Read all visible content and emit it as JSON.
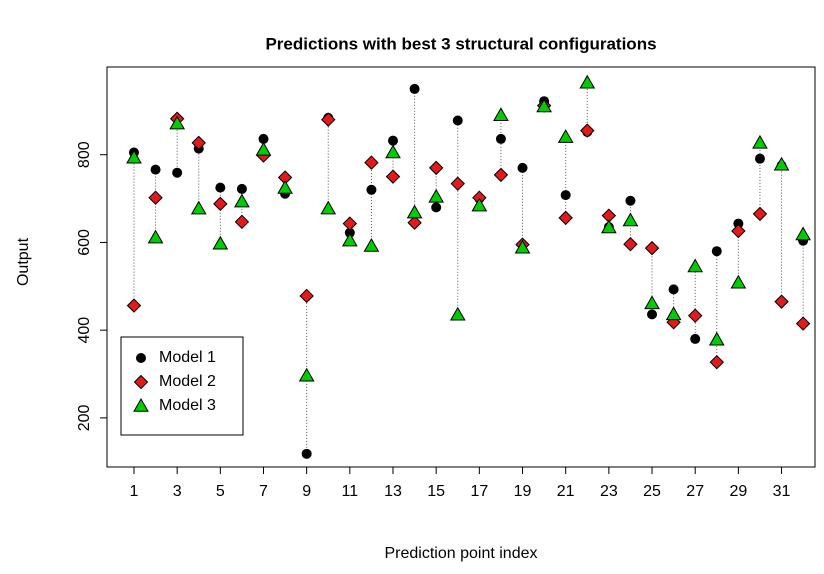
{
  "chart_data": {
    "type": "scatter",
    "title": "Predictions with best 3 structural configurations",
    "x_label": "Prediction point index",
    "y_label": "Output",
    "x": [
      1,
      2,
      3,
      4,
      5,
      6,
      7,
      8,
      9,
      10,
      11,
      12,
      13,
      14,
      15,
      16,
      17,
      18,
      19,
      20,
      21,
      22,
      23,
      24,
      25,
      26,
      27,
      28,
      29,
      30,
      31,
      32
    ],
    "series": [
      {
        "name": "Model 1",
        "color": "#000000",
        "marker": "circle",
        "values": [
          805,
          766,
          759,
          814,
          725,
          722,
          836,
          711,
          118,
          884,
          622,
          720,
          832,
          950,
          680,
          878,
          700,
          836,
          770,
          922,
          708,
          852,
          635,
          695,
          436,
          493,
          380,
          580,
          643,
          791,
          775,
          604
        ]
      },
      {
        "name": "Model 2",
        "color": "#e31a1c",
        "marker": "diamond",
        "values": [
          456,
          702,
          882,
          827,
          688,
          647,
          798,
          748,
          478,
          880,
          643,
          782,
          750,
          645,
          770,
          734,
          702,
          754,
          595,
          912,
          656,
          855,
          661,
          596,
          587,
          418,
          433,
          327,
          626,
          665,
          465,
          415
        ]
      },
      {
        "name": "Model 3",
        "color": "#00cc00",
        "marker": "triangle",
        "values": [
          793,
          611,
          871,
          677,
          597,
          693,
          811,
          724,
          296,
          677,
          604,
          592,
          805,
          668,
          704,
          435,
          684,
          890,
          588,
          910,
          840,
          964,
          634,
          650,
          461,
          436,
          545,
          378,
          508,
          827,
          777,
          618
        ]
      }
    ],
    "xlim": [
      -0.25,
      32.55
    ],
    "ylim": [
      88,
      1000
    ],
    "xticks": [
      1,
      3,
      5,
      7,
      9,
      11,
      13,
      15,
      17,
      19,
      21,
      23,
      25,
      27,
      29,
      31
    ],
    "yticks": [
      200,
      400,
      600,
      800
    ],
    "legend": "bottom-left"
  }
}
